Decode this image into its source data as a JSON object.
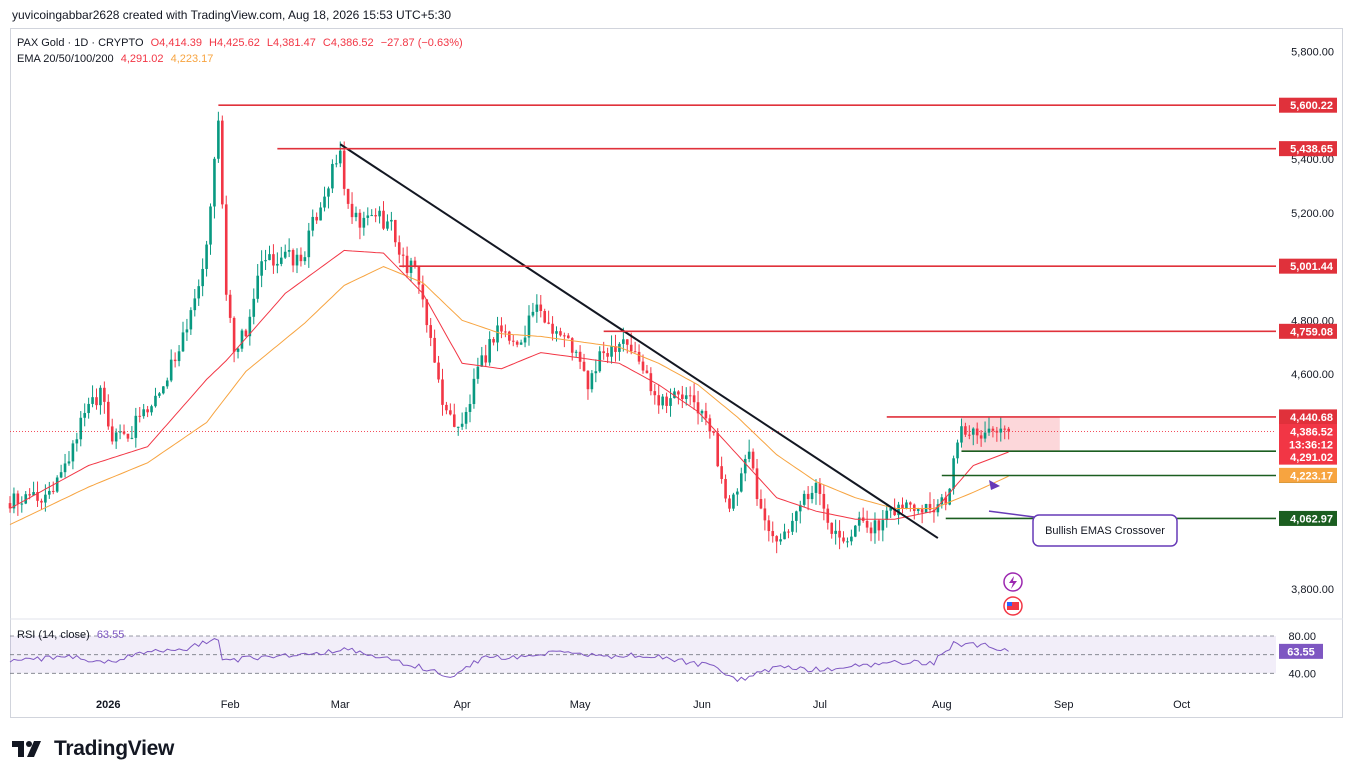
{
  "caption": "yuvicoingabbar2628 created with TradingView.com, Aug 18, 2026 15:53 UTC+5:30",
  "legend": {
    "symbol": "PAX Gold · 1D · CRYPTO",
    "open": "O4,414.39",
    "high": "H4,425.62",
    "low": "L4,381.47",
    "close": "C4,386.52",
    "change": "−27.87 (−0.63%)",
    "ema_label": "EMA 20/50/100/200",
    "ema_val1": "4,291.02",
    "ema_val2": "4,223.17"
  },
  "rsi_legend": {
    "label": "RSI (14, close)",
    "value": "63.55"
  },
  "annotation": "Bullish EMAS Crossover",
  "brand": "TradingView",
  "colors": {
    "up": "#089981",
    "down": "#f23645",
    "ema_fast": "#f23645",
    "ema_slow": "#f7a440",
    "rsi": "#7e57c2",
    "level": "#e0313b",
    "support": "#1b5e20"
  },
  "chart_data": {
    "type": "candlestick",
    "title": "PAX Gold · 1D · CRYPTO",
    "y_range": [
      3700,
      5880
    ],
    "y_ticks": [
      "5,800.00",
      "5,400.00",
      "5,200.00",
      "4,800.00",
      "4,600.00",
      "3,800.00"
    ],
    "y_tick_values": [
      5800,
      5400,
      5200,
      4800,
      4600,
      3800
    ],
    "x_ticks": [
      "2026",
      "Feb",
      "Mar",
      "Apr",
      "May",
      "Jun",
      "Jul",
      "Aug",
      "Sep",
      "Oct"
    ],
    "x_tick_days": [
      0,
      31,
      59,
      90,
      120,
      151,
      181,
      212,
      243,
      273
    ],
    "x_day_range": [
      -25,
      297
    ],
    "ohlc_anchors": [
      [
        -25,
        4120
      ],
      [
        -18,
        4130
      ],
      [
        -12,
        4230
      ],
      [
        -6,
        4440
      ],
      [
        -2,
        4520
      ],
      [
        1,
        4360
      ],
      [
        5,
        4370
      ],
      [
        9,
        4450
      ],
      [
        14,
        4560
      ],
      [
        18,
        4700
      ],
      [
        22,
        4900
      ],
      [
        25,
        5050
      ],
      [
        28,
        5560
      ],
      [
        30,
        4900
      ],
      [
        32,
        4700
      ],
      [
        35,
        4760
      ],
      [
        39,
        5000
      ],
      [
        44,
        5040
      ],
      [
        49,
        5020
      ],
      [
        54,
        5240
      ],
      [
        59,
        5420
      ],
      [
        61,
        5200
      ],
      [
        64,
        5150
      ],
      [
        68,
        5200
      ],
      [
        72,
        5150
      ],
      [
        75,
        5020
      ],
      [
        79,
        4960
      ],
      [
        82,
        4700
      ],
      [
        86,
        4450
      ],
      [
        90,
        4400
      ],
      [
        94,
        4600
      ],
      [
        99,
        4780
      ],
      [
        104,
        4700
      ],
      [
        108,
        4840
      ],
      [
        113,
        4780
      ],
      [
        118,
        4700
      ],
      [
        122,
        4560
      ],
      [
        126,
        4680
      ],
      [
        131,
        4740
      ],
      [
        136,
        4620
      ],
      [
        140,
        4510
      ],
      [
        145,
        4520
      ],
      [
        150,
        4480
      ],
      [
        154,
        4360
      ],
      [
        158,
        4080
      ],
      [
        163,
        4300
      ],
      [
        167,
        4040
      ],
      [
        172,
        3980
      ],
      [
        176,
        4130
      ],
      [
        180,
        4180
      ],
      [
        184,
        4040
      ],
      [
        188,
        4000
      ],
      [
        192,
        4060
      ],
      [
        196,
        4020
      ],
      [
        200,
        4100
      ],
      [
        205,
        4120
      ],
      [
        210,
        4110
      ],
      [
        214,
        4160
      ],
      [
        216,
        4370
      ],
      [
        220,
        4400
      ],
      [
        224,
        4390
      ],
      [
        227,
        4420
      ],
      [
        229,
        4386.52
      ]
    ],
    "ema_fast_anchors": [
      [
        -25,
        4100
      ],
      [
        -5,
        4260
      ],
      [
        10,
        4330
      ],
      [
        25,
        4580
      ],
      [
        30,
        4650
      ],
      [
        45,
        4900
      ],
      [
        60,
        5060
      ],
      [
        70,
        5050
      ],
      [
        80,
        4900
      ],
      [
        90,
        4640
      ],
      [
        100,
        4620
      ],
      [
        110,
        4680
      ],
      [
        120,
        4660
      ],
      [
        130,
        4640
      ],
      [
        140,
        4560
      ],
      [
        150,
        4460
      ],
      [
        160,
        4300
      ],
      [
        170,
        4140
      ],
      [
        180,
        4090
      ],
      [
        190,
        4060
      ],
      [
        200,
        4060
      ],
      [
        210,
        4090
      ],
      [
        220,
        4260
      ],
      [
        229,
        4310
      ]
    ],
    "ema_slow_anchors": [
      [
        -25,
        4040
      ],
      [
        -5,
        4180
      ],
      [
        10,
        4270
      ],
      [
        25,
        4420
      ],
      [
        35,
        4610
      ],
      [
        50,
        4790
      ],
      [
        60,
        4930
      ],
      [
        70,
        5000
      ],
      [
        80,
        4940
      ],
      [
        90,
        4800
      ],
      [
        100,
        4750
      ],
      [
        110,
        4740
      ],
      [
        120,
        4720
      ],
      [
        130,
        4700
      ],
      [
        140,
        4640
      ],
      [
        150,
        4560
      ],
      [
        160,
        4440
      ],
      [
        170,
        4300
      ],
      [
        180,
        4200
      ],
      [
        190,
        4140
      ],
      [
        200,
        4100
      ],
      [
        210,
        4100
      ],
      [
        220,
        4160
      ],
      [
        229,
        4220
      ]
    ],
    "horizontal_levels": [
      {
        "price": 5600.22,
        "label": "5,600.22",
        "start_day": 28,
        "kind": "resistance"
      },
      {
        "price": 5438.65,
        "label": "5,438.65",
        "start_day": 43,
        "kind": "resistance"
      },
      {
        "price": 5001.44,
        "label": "5,001.44",
        "start_day": 74,
        "kind": "resistance"
      },
      {
        "price": 4759.08,
        "label": "4,759.08",
        "start_day": 126,
        "kind": "resistance"
      },
      {
        "price": 4440.68,
        "label": "4,440.68",
        "start_day": 198,
        "kind": "resistance"
      },
      {
        "price": 4313.23,
        "label": "4,313.23",
        "start_day": 217,
        "kind": "support"
      },
      {
        "price": 4222.67,
        "label": "4,222.67",
        "start_day": 212,
        "kind": "support"
      },
      {
        "price": 4062.97,
        "label": "4,062.97",
        "start_day": 213,
        "kind": "support"
      }
    ],
    "price_tags": [
      {
        "label": "4,386.52",
        "sub": "13:36:12",
        "price": 4386.52
      },
      {
        "label": "4,291.02",
        "price": 4291.02
      },
      {
        "label": "4,223.17",
        "price": 4223.17
      }
    ],
    "trendline": {
      "from": [
        59,
        5455
      ],
      "to": [
        211,
        3990
      ]
    },
    "zone": {
      "from_day": 217,
      "to_day": 242,
      "top": 4440.68,
      "bottom": 4313.23
    },
    "rsi": {
      "range": [
        20,
        95
      ],
      "ticks": [
        "80.00",
        "40.00"
      ],
      "tick_values": [
        80,
        40
      ],
      "value": 63.55,
      "anchors": [
        [
          -25,
          52
        ],
        [
          -10,
          58
        ],
        [
          0,
          52
        ],
        [
          10,
          62
        ],
        [
          20,
          66
        ],
        [
          28,
          78
        ],
        [
          29,
          53
        ],
        [
          40,
          58
        ],
        [
          50,
          60
        ],
        [
          60,
          66
        ],
        [
          70,
          56
        ],
        [
          82,
          44
        ],
        [
          86,
          34
        ],
        [
          95,
          56
        ],
        [
          105,
          58
        ],
        [
          115,
          62
        ],
        [
          125,
          58
        ],
        [
          135,
          60
        ],
        [
          145,
          54
        ],
        [
          155,
          46
        ],
        [
          160,
          32
        ],
        [
          170,
          46
        ],
        [
          180,
          44
        ],
        [
          190,
          48
        ],
        [
          200,
          52
        ],
        [
          210,
          52
        ],
        [
          215,
          72
        ],
        [
          222,
          70
        ],
        [
          229,
          66
        ]
      ]
    }
  }
}
